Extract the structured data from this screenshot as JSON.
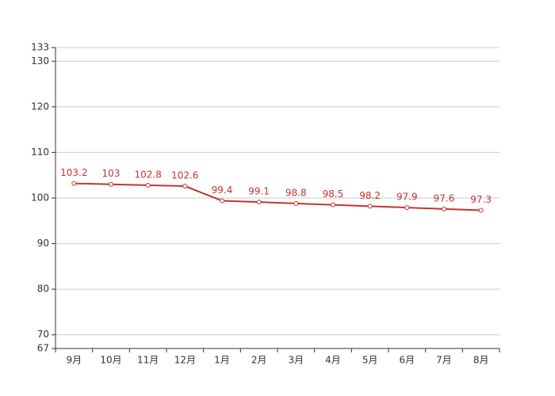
{
  "chart_data": {
    "type": "line",
    "categories": [
      "9月",
      "10月",
      "11月",
      "12月",
      "1月",
      "2月",
      "3月",
      "4月",
      "5月",
      "6月",
      "7月",
      "8月"
    ],
    "values": [
      103.2,
      103,
      102.8,
      102.6,
      99.4,
      99.1,
      98.8,
      98.5,
      98.2,
      97.9,
      97.6,
      97.3
    ],
    "color": "#c23531",
    "ylim": [
      67,
      133
    ],
    "yticks": [
      67,
      70,
      80,
      90,
      100,
      110,
      120,
      130,
      133
    ],
    "grid": true
  }
}
